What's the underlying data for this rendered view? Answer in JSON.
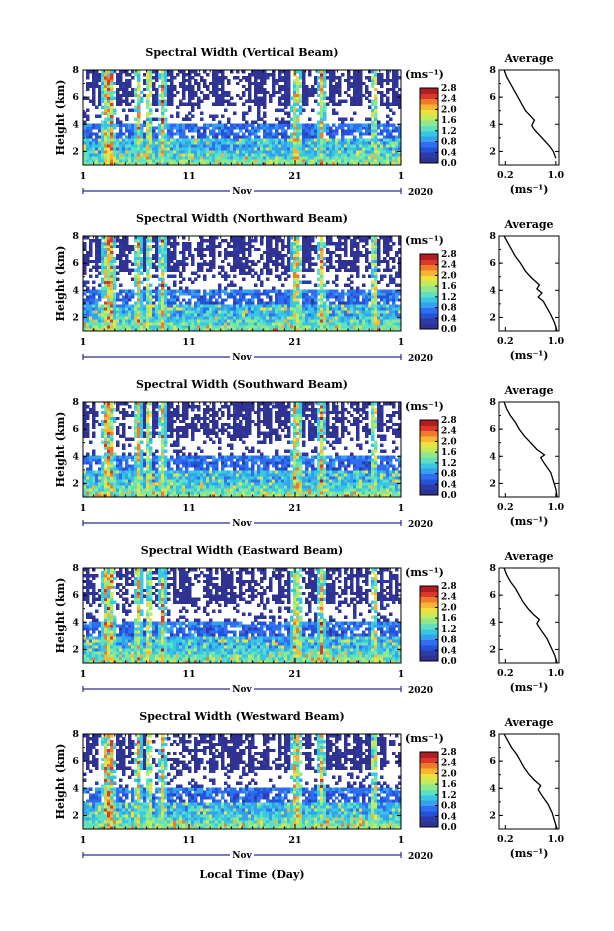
{
  "colors": {
    "colormap": [
      "#2f3290",
      "#2e3aa5",
      "#2453d8",
      "#2f6ef2",
      "#35a0ee",
      "#38c7e3",
      "#5fe0c2",
      "#8fe98c",
      "#c4eb5d",
      "#eee03e",
      "#f7b533",
      "#f07c2b",
      "#d8392a",
      "#b01e24"
    ],
    "background": "#ffffff",
    "line": "#000000"
  },
  "shared": {
    "ylabel": "Height (km)",
    "y_ticks": [
      "2",
      "4",
      "6",
      "8"
    ],
    "x_ticks": [
      "1",
      "11",
      "21",
      "1"
    ],
    "month_label": "Nov",
    "year_label": "2020",
    "colorbar_unit": "(ms⁻¹)",
    "colorbar_ticks": [
      "0.0",
      "0.4",
      "0.8",
      "1.2",
      "1.6",
      "2.0",
      "2.4",
      "2.8"
    ],
    "avg_title": "Average",
    "avg_x_ticks": [
      "0.2",
      "1.0"
    ],
    "avg_xlabel": "(ms⁻¹)",
    "avg_y_ticks": [
      "2",
      "4",
      "6",
      "8"
    ],
    "bottom_xlabel": "Local Time (Day)"
  },
  "chart_data": [
    {
      "type": "heatmap",
      "title": "Spectral Width (Vertical Beam)",
      "xlabel": "",
      "ylabel": "Height (km)",
      "x_range_days": [
        1,
        31
      ],
      "y_range_km": [
        1,
        8
      ],
      "c_range": [
        0.0,
        2.8
      ],
      "colorbar_ticks": [
        "0.0",
        "0.4",
        "0.8",
        "1.2",
        "1.6",
        "2.0",
        "2.4",
        "2.8"
      ],
      "avg_profile": {
        "type": "line",
        "title": "Average",
        "xlim": [
          0.1,
          1.05
        ],
        "ylim": [
          1,
          8
        ],
        "x": [
          1.0,
          0.96,
          0.9,
          0.82,
          0.74,
          0.66,
          0.62,
          0.66,
          0.6,
          0.52,
          0.46,
          0.4,
          0.34,
          0.28,
          0.22,
          0.18
        ],
        "y": [
          1.5,
          2.0,
          2.4,
          2.8,
          3.2,
          3.6,
          3.9,
          4.3,
          4.6,
          5.0,
          5.5,
          6.0,
          6.5,
          7.0,
          7.5,
          8.0
        ]
      }
    },
    {
      "type": "heatmap",
      "title": "Spectral Width (Northward Beam)",
      "xlabel": "",
      "ylabel": "Height (km)",
      "x_range_days": [
        1,
        31
      ],
      "y_range_km": [
        1,
        8
      ],
      "c_range": [
        0.0,
        2.8
      ],
      "colorbar_ticks": [
        "0.0",
        "0.4",
        "0.8",
        "1.2",
        "1.6",
        "2.0",
        "2.4",
        "2.8"
      ],
      "avg_profile": {
        "type": "line",
        "title": "Average",
        "xlim": [
          0.1,
          1.05
        ],
        "ylim": [
          1,
          8
        ],
        "x": [
          1.02,
          0.98,
          0.92,
          0.86,
          0.8,
          0.72,
          0.78,
          0.7,
          0.74,
          0.62,
          0.52,
          0.44,
          0.36,
          0.3,
          0.24,
          0.18
        ],
        "y": [
          1.0,
          1.6,
          2.2,
          2.7,
          3.2,
          3.5,
          3.8,
          4.1,
          4.4,
          4.9,
          5.4,
          6.0,
          6.5,
          7.0,
          7.5,
          8.0
        ]
      }
    },
    {
      "type": "heatmap",
      "title": "Spectral Width (Southward Beam)",
      "xlabel": "",
      "ylabel": "Height (km)",
      "x_range_days": [
        1,
        31
      ],
      "y_range_km": [
        1,
        8
      ],
      "c_range": [
        0.0,
        2.8
      ],
      "colorbar_ticks": [
        "0.0",
        "0.4",
        "0.8",
        "1.2",
        "1.6",
        "2.0",
        "2.4",
        "2.8"
      ],
      "avg_profile": {
        "type": "line",
        "title": "Average",
        "xlim": [
          0.1,
          1.05
        ],
        "ylim": [
          1,
          8
        ],
        "x": [
          1.02,
          1.0,
          0.96,
          0.92,
          0.86,
          0.8,
          0.76,
          0.82,
          0.7,
          0.6,
          0.5,
          0.42,
          0.36,
          0.28,
          0.22,
          0.18
        ],
        "y": [
          1.0,
          1.6,
          2.2,
          2.8,
          3.2,
          3.6,
          3.9,
          4.1,
          4.5,
          5.0,
          5.5,
          6.0,
          6.5,
          7.0,
          7.5,
          8.0
        ]
      }
    },
    {
      "type": "heatmap",
      "title": "Spectral Width (Eastward Beam)",
      "xlabel": "",
      "ylabel": "Height (km)",
      "x_range_days": [
        1,
        31
      ],
      "y_range_km": [
        1,
        8
      ],
      "c_range": [
        0.0,
        2.8
      ],
      "colorbar_ticks": [
        "0.0",
        "0.4",
        "0.8",
        "1.2",
        "1.6",
        "2.0",
        "2.4",
        "2.8"
      ],
      "avg_profile": {
        "type": "line",
        "title": "Average",
        "xlim": [
          0.1,
          1.05
        ],
        "ylim": [
          1,
          8
        ],
        "x": [
          1.02,
          0.98,
          0.92,
          0.86,
          0.8,
          0.74,
          0.7,
          0.74,
          0.64,
          0.56,
          0.48,
          0.42,
          0.36,
          0.28,
          0.22,
          0.18
        ],
        "y": [
          1.0,
          1.6,
          2.2,
          2.8,
          3.2,
          3.6,
          3.9,
          4.2,
          4.6,
          5.0,
          5.5,
          6.0,
          6.5,
          7.0,
          7.5,
          8.0
        ]
      }
    },
    {
      "type": "heatmap",
      "title": "Spectral Width (Westward Beam)",
      "xlabel": "Local Time (Day)",
      "ylabel": "Height (km)",
      "x_range_days": [
        1,
        31
      ],
      "y_range_km": [
        1,
        8
      ],
      "c_range": [
        0.0,
        2.8
      ],
      "colorbar_ticks": [
        "0.0",
        "0.4",
        "0.8",
        "1.2",
        "1.6",
        "2.0",
        "2.4",
        "2.8"
      ],
      "avg_profile": {
        "type": "line",
        "title": "Average",
        "xlim": [
          0.1,
          1.05
        ],
        "ylim": [
          1,
          8
        ],
        "x": [
          1.02,
          0.98,
          0.94,
          0.88,
          0.82,
          0.76,
          0.72,
          0.76,
          0.66,
          0.58,
          0.5,
          0.44,
          0.38,
          0.3,
          0.24,
          0.18
        ],
        "y": [
          1.0,
          1.6,
          2.2,
          2.8,
          3.2,
          3.6,
          3.9,
          4.2,
          4.6,
          5.0,
          5.5,
          6.0,
          6.5,
          7.0,
          7.5,
          8.0
        ]
      }
    }
  ]
}
